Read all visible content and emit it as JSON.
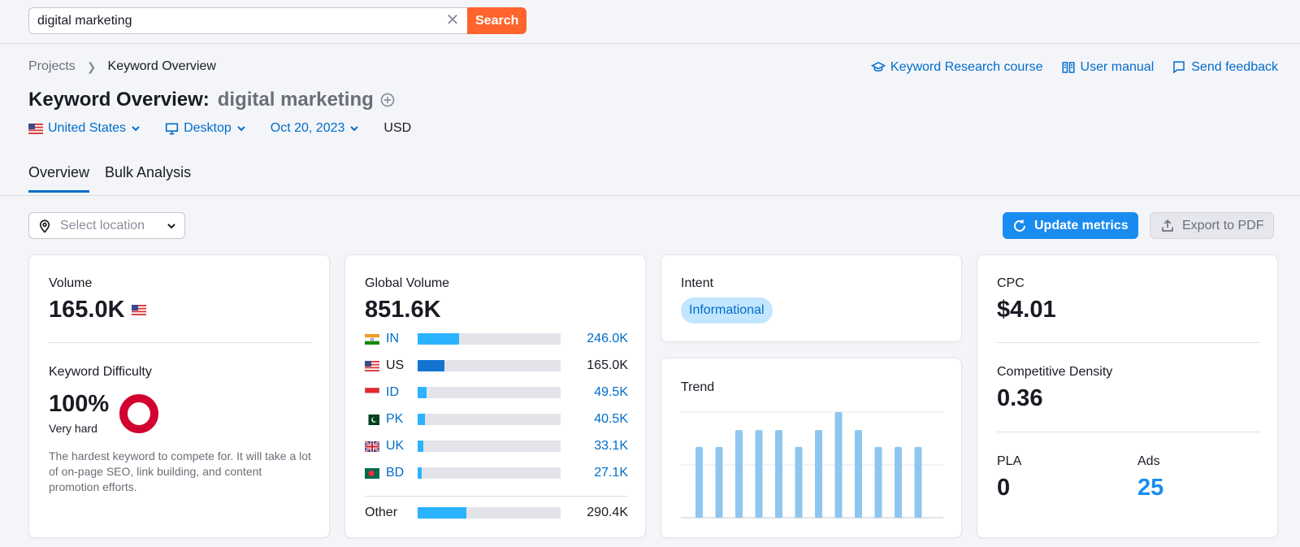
{
  "search": {
    "value": "digital marketing",
    "button_label": "Search"
  },
  "breadcrumb": {
    "projects": "Projects",
    "current": "Keyword Overview"
  },
  "header_links": {
    "course": "Keyword Research course",
    "manual": "User manual",
    "feedback": "Send feedback"
  },
  "title": {
    "label": "Keyword Overview:",
    "keyword": "digital marketing"
  },
  "filters": {
    "country": "United States",
    "device": "Desktop",
    "date": "Oct 20, 2023",
    "currency": "USD"
  },
  "tabs": [
    {
      "label": "Overview",
      "active": true
    },
    {
      "label": "Bulk Analysis",
      "active": false
    }
  ],
  "toolbar": {
    "location_placeholder": "Select location",
    "update_label": "Update metrics",
    "export_label": "Export to PDF"
  },
  "volume_card": {
    "label": "Volume",
    "value": "165.0K",
    "kd_label": "Keyword Difficulty",
    "kd_value": "100%",
    "kd_level": "Very hard",
    "kd_percent": 100,
    "kd_description": "The hardest keyword to compete for. It will take a lot of on-page SEO, link building, and content promotion efforts."
  },
  "global_card": {
    "label": "Global Volume",
    "value": "851.6K",
    "countries": [
      {
        "code": "IN",
        "value": "246.0K",
        "share": 0.29,
        "link": true
      },
      {
        "code": "US",
        "value": "165.0K",
        "share": 0.19,
        "link": false
      },
      {
        "code": "ID",
        "value": "49.5K",
        "share": 0.06,
        "link": true
      },
      {
        "code": "PK",
        "value": "40.5K",
        "share": 0.05,
        "link": true
      },
      {
        "code": "UK",
        "value": "33.1K",
        "share": 0.04,
        "link": true
      },
      {
        "code": "BD",
        "value": "27.1K",
        "share": 0.03,
        "link": true
      }
    ],
    "other_label": "Other",
    "other_value": "290.4K",
    "other_share": 0.34
  },
  "intent_card": {
    "label": "Intent",
    "badge": "Informational"
  },
  "trend_card": {
    "label": "Trend",
    "values": [
      0.67,
      0.67,
      0.83,
      0.83,
      0.83,
      0.67,
      0.83,
      1.0,
      0.83,
      0.67,
      0.67,
      0.67
    ]
  },
  "cpc_card": {
    "cpc_label": "CPC",
    "cpc_value": "$4.01",
    "cd_label": "Competitive Density",
    "cd_value": "0.36",
    "pla_label": "PLA",
    "pla_value": "0",
    "ads_label": "Ads",
    "ads_value": "25"
  },
  "colors": {
    "accent": "#006dca",
    "search_button": "#ff642d",
    "update_button": "#1a8cf0",
    "kd_donut": "#d1002f",
    "bar_light": "#2bb3ff",
    "bar_dark": "#1274d0",
    "trend_bar": "#8fc6ef"
  }
}
